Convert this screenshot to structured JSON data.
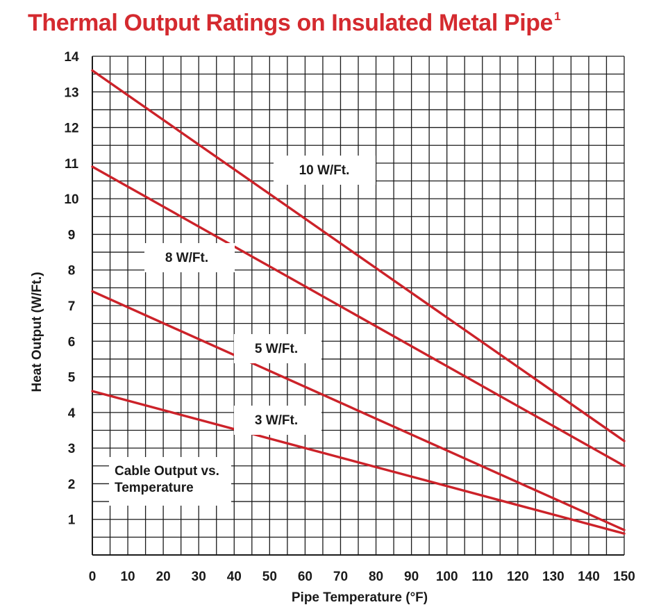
{
  "title": "Thermal Output Ratings on Insulated Metal Pipe",
  "title_footnote": "1",
  "colors": {
    "title": "#d42a2f",
    "series": "#cc2229",
    "grid": "#1a1a1a",
    "text": "#1a1a1a"
  },
  "chart_data": {
    "type": "line",
    "title": "Thermal Output Ratings on Insulated Metal Pipe",
    "xlabel": "Pipe Temperature (°F)",
    "ylabel": "Heat Output (W/Ft.)",
    "xlim": [
      0,
      150
    ],
    "ylim": [
      0,
      14
    ],
    "x_ticks": [
      0,
      10,
      20,
      30,
      40,
      50,
      60,
      70,
      80,
      90,
      100,
      110,
      120,
      130,
      140,
      150
    ],
    "y_ticks": [
      1,
      2,
      3,
      4,
      5,
      6,
      7,
      8,
      9,
      10,
      11,
      12,
      13,
      14
    ],
    "x_minor_step": 5,
    "y_minor_step": 0.5,
    "grid": true,
    "annotation": "Cable Output vs. Temperature",
    "series": [
      {
        "name": "10 W/Ft.",
        "x": [
          0,
          150
        ],
        "y": [
          13.6,
          3.2
        ]
      },
      {
        "name": "8 W/Ft.",
        "x": [
          0,
          150
        ],
        "y": [
          10.9,
          2.5
        ]
      },
      {
        "name": "5 W/Ft.",
        "x": [
          0,
          150
        ],
        "y": [
          7.4,
          0.7
        ]
      },
      {
        "name": "3 W/Ft.",
        "x": [
          0,
          150
        ],
        "y": [
          4.6,
          0.6
        ]
      }
    ]
  }
}
